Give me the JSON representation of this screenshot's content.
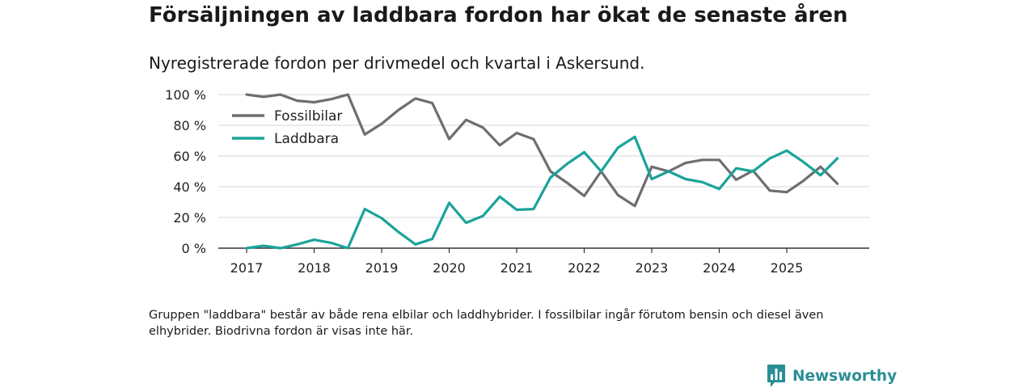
{
  "title": "Försäljningen av laddbara fordon har ökat de senaste åren",
  "subtitle": "Nyregistrerade fordon per drivmedel och kvartal i Askersund.",
  "note": "Gruppen \"laddbara\" består av både rena elbilar och laddhybrider. I fossilbilar ingår förutom bensin och diesel även elhybrider. Biodrivna fordon är visas inte här.",
  "brand": "Newsworthy",
  "colors": {
    "fossil": "#6e6d73",
    "laddbara": "#1aa39a",
    "grid": "#d6d6d6",
    "axis": "#333333",
    "brand": "#2a8e95"
  },
  "chart_data": {
    "type": "line",
    "x_start": 2017,
    "points_per_year": 4,
    "xticks": [
      "2017",
      "2018",
      "2019",
      "2020",
      "2021",
      "2022",
      "2023",
      "2024",
      "2025"
    ],
    "yticks": [
      "0 %",
      "20 %",
      "40 %",
      "60 %",
      "80 %",
      "100 %"
    ],
    "ylim": [
      0,
      100
    ],
    "legend_position": "top-left",
    "series": [
      {
        "name": "Fossilbilar",
        "color_key": "fossil",
        "values": [
          100,
          98.5,
          100,
          96,
          95,
          97,
          100,
          74,
          81,
          90,
          97.5,
          94.5,
          71,
          83.5,
          78.5,
          67,
          75,
          71,
          50,
          42.5,
          34,
          50,
          34.5,
          27.5,
          53,
          50,
          55.5,
          57.5,
          57.5,
          44.5,
          50.5,
          37.5,
          36.5,
          44,
          53,
          42
        ]
      },
      {
        "name": "Laddbara",
        "color_key": "laddbara",
        "values": [
          0,
          1.5,
          0,
          2.5,
          5.5,
          3.5,
          0,
          25.5,
          19.5,
          10.5,
          2.5,
          6,
          29.5,
          16.5,
          21,
          33.5,
          25,
          25.5,
          46,
          55,
          62.5,
          50,
          65.5,
          72.5,
          45,
          50,
          45,
          43,
          38.5,
          52,
          50,
          58.5,
          63.5,
          56,
          47.5,
          58.5
        ]
      }
    ]
  }
}
